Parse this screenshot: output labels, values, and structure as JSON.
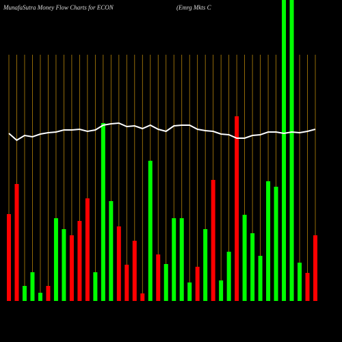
{
  "chart_data": {
    "type": "bar",
    "title": "MunafaSutra  Money Flow  Charts for ECON",
    "subtitle": "(Emrg Mkts C",
    "categories": [
      null,
      null,
      null,
      null,
      null,
      null,
      null,
      null,
      null,
      null,
      null,
      null,
      null,
      null,
      null,
      null,
      null,
      null,
      null,
      null,
      null,
      null,
      null,
      null,
      null,
      null,
      null,
      null,
      null,
      null,
      null,
      null,
      null,
      null,
      null,
      null,
      null,
      null,
      null,
      null
    ],
    "values": [
      127,
      171,
      22,
      42,
      12,
      22,
      121,
      105,
      96,
      117,
      150,
      42,
      260,
      146,
      109,
      53,
      88,
      11,
      205,
      68,
      54,
      121,
      121,
      27,
      50,
      105,
      177,
      30,
      72,
      270,
      126,
      99,
      66,
      175,
      167,
      440,
      440,
      56,
      41,
      96
    ],
    "colors": [
      "#ff0000",
      "#ff0000",
      "#00ff00",
      "#00ff00",
      "#00ff00",
      "#ff0000",
      "#00ff00",
      "#00ff00",
      "#ff0000",
      "#ff0000",
      "#ff0000",
      "#00ff00",
      "#00ff00",
      "#00ff00",
      "#ff0000",
      "#ff0000",
      "#ff0000",
      "#ff0000",
      "#00ff00",
      "#ff0000",
      "#00ff00",
      "#00ff00",
      "#00ff00",
      "#00ff00",
      "#ff0000",
      "#00ff00",
      "#ff0000",
      "#00ff00",
      "#00ff00",
      "#ff0000",
      "#00ff00",
      "#00ff00",
      "#00ff00",
      "#00ff00",
      "#00ff00",
      "#00ff00",
      "#00ff00",
      "#00ff00",
      "#ff0000",
      "#ff0000"
    ],
    "line": {
      "color": "#ffffff",
      "values": [
        245,
        235,
        242,
        240,
        244,
        246,
        247,
        250,
        250,
        251,
        248,
        250,
        257,
        259,
        260,
        255,
        256,
        252,
        257,
        251,
        248,
        256,
        257,
        257,
        251,
        249,
        248,
        244,
        243,
        238,
        238,
        242,
        243,
        247,
        247,
        245,
        247,
        246,
        248,
        251
      ]
    },
    "ylim": [
      0,
      440
    ],
    "grid": true,
    "grid_color": "#b8860b"
  }
}
